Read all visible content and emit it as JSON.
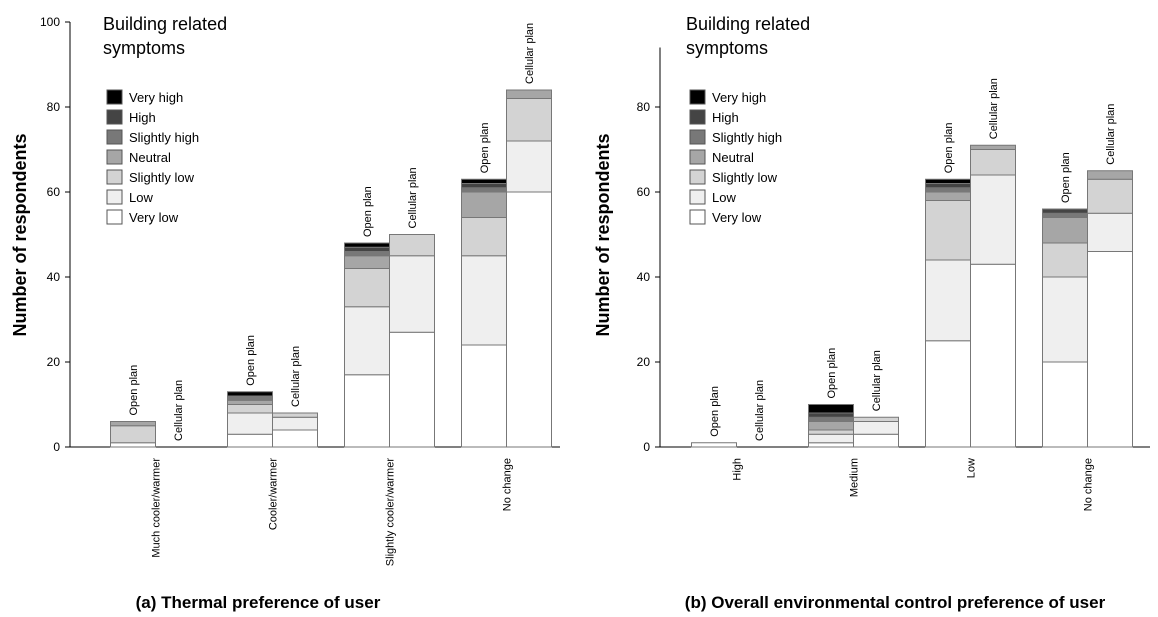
{
  "chart_data": [
    {
      "type": "stacked_bar",
      "legend_title": [
        "Building related",
        "symptoms"
      ],
      "y_label": "Number of respondents",
      "caption": "(a) Thermal preference of user",
      "categories": [
        "Much cooler/warmer",
        "Cooler/warmer",
        "Slightly cooler/warmer",
        "No change"
      ],
      "groups": [
        "Open plan",
        "Cellular plan"
      ],
      "ylim": [
        0,
        100
      ],
      "yticks": [
        0,
        20,
        40,
        60,
        80,
        100
      ],
      "series": [
        {
          "name": "Very low",
          "color": "#ffffff",
          "values": [
            [
              1,
              0
            ],
            [
              3,
              4
            ],
            [
              17,
              27
            ],
            [
              24,
              60
            ]
          ]
        },
        {
          "name": "Low",
          "color": "#efefef",
          "values": [
            [
              0,
              0
            ],
            [
              5,
              3
            ],
            [
              16,
              18
            ],
            [
              21,
              12
            ]
          ]
        },
        {
          "name": "Slightly low",
          "color": "#d3d3d3",
          "values": [
            [
              4,
              0
            ],
            [
              2,
              1
            ],
            [
              9,
              5
            ],
            [
              9,
              10
            ]
          ]
        },
        {
          "name": "Neutral",
          "color": "#a6a6a6",
          "values": [
            [
              1,
              0
            ],
            [
              1,
              0
            ],
            [
              3,
              0
            ],
            [
              6,
              2
            ]
          ]
        },
        {
          "name": "Slightly high",
          "color": "#787878",
          "values": [
            [
              0,
              0
            ],
            [
              1,
              0
            ],
            [
              1,
              0
            ],
            [
              1,
              0
            ]
          ]
        },
        {
          "name": "High",
          "color": "#444444",
          "values": [
            [
              0,
              0
            ],
            [
              0,
              0
            ],
            [
              1,
              0
            ],
            [
              1,
              0
            ]
          ]
        },
        {
          "name": "Very high",
          "color": "#000000",
          "values": [
            [
              0,
              0
            ],
            [
              1,
              0
            ],
            [
              1,
              0
            ],
            [
              1,
              0
            ]
          ]
        }
      ]
    },
    {
      "type": "stacked_bar",
      "legend_title": [
        "Building related",
        "symptoms"
      ],
      "y_label": "Number of respondents",
      "caption": "(b) Overall environmental control preference of user",
      "categories": [
        "High",
        "Medium",
        "Low",
        "No change"
      ],
      "groups": [
        "Open plan",
        "Cellular plan"
      ],
      "ylim": [
        0,
        94
      ],
      "yticks": [
        0,
        20,
        40,
        60,
        80
      ],
      "series": [
        {
          "name": "Very low",
          "color": "#ffffff",
          "values": [
            [
              1,
              0
            ],
            [
              1,
              3
            ],
            [
              25,
              43
            ],
            [
              20,
              46
            ]
          ]
        },
        {
          "name": "Low",
          "color": "#efefef",
          "values": [
            [
              0,
              0
            ],
            [
              2,
              3
            ],
            [
              19,
              21
            ],
            [
              20,
              9
            ]
          ]
        },
        {
          "name": "Slightly low",
          "color": "#d3d3d3",
          "values": [
            [
              0,
              0
            ],
            [
              1,
              1
            ],
            [
              14,
              6
            ],
            [
              8,
              8
            ]
          ]
        },
        {
          "name": "Neutral",
          "color": "#a6a6a6",
          "values": [
            [
              0,
              0
            ],
            [
              2,
              0
            ],
            [
              2,
              1
            ],
            [
              6,
              2
            ]
          ]
        },
        {
          "name": "Slightly high",
          "color": "#787878",
          "values": [
            [
              0,
              0
            ],
            [
              1,
              0
            ],
            [
              1,
              0
            ],
            [
              1,
              0
            ]
          ]
        },
        {
          "name": "High",
          "color": "#444444",
          "values": [
            [
              0,
              0
            ],
            [
              1,
              0
            ],
            [
              1,
              0
            ],
            [
              1,
              0
            ]
          ]
        },
        {
          "name": "Very high",
          "color": "#000000",
          "values": [
            [
              0,
              0
            ],
            [
              2,
              0
            ],
            [
              1,
              0
            ],
            [
              0,
              0
            ]
          ]
        }
      ]
    }
  ]
}
